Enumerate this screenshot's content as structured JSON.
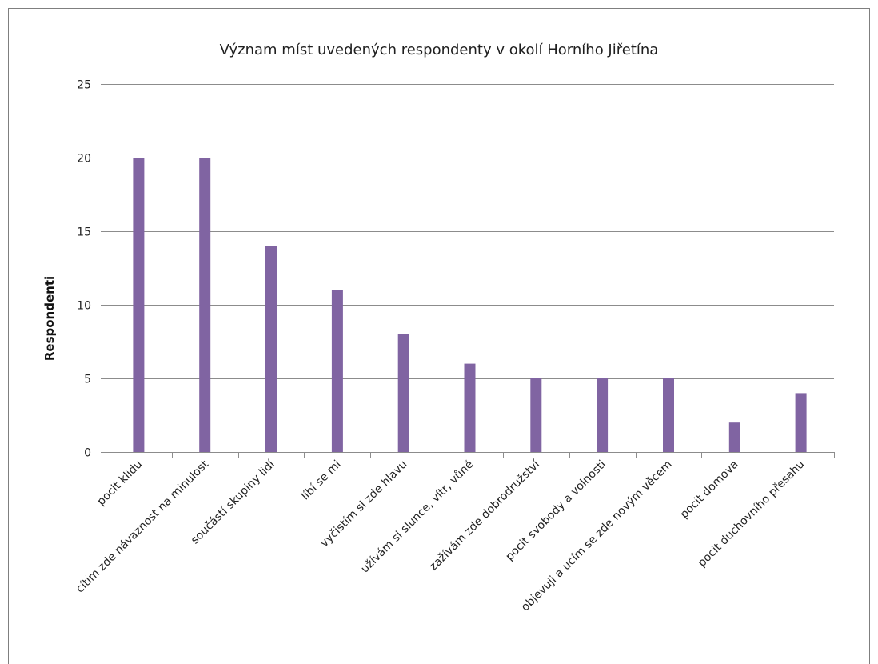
{
  "chart_data": {
    "type": "bar",
    "title": "Význam míst uvedených respondenty v okolí Horního Jiřetína",
    "xlabel": "",
    "ylabel": "Respondenti",
    "categories": [
      "pocit klidu",
      "cítím zde návaznost na minulost",
      "součástí skupiny lidí",
      "líbí se mi",
      "vyčistím si zde hlavu",
      "užívám si slunce, vítr, vůně",
      "zažívám zde dobrodružství",
      "pocit svobody a volnosti",
      "objevuji a učím se zde novým věcem",
      "pocit domova",
      "pocit duchovního přesahu"
    ],
    "values": [
      20,
      20,
      14,
      11,
      8,
      6,
      5,
      5,
      5,
      2,
      4
    ],
    "ylim": [
      0,
      25
    ],
    "yticks": [
      0,
      5,
      10,
      15,
      20,
      25
    ],
    "grid": true,
    "legend": "none",
    "colors": {
      "bar": "#8064A2",
      "grid": "#8c8c8c",
      "axis": "#8c8c8c",
      "frame": "#7f7f7f"
    }
  }
}
